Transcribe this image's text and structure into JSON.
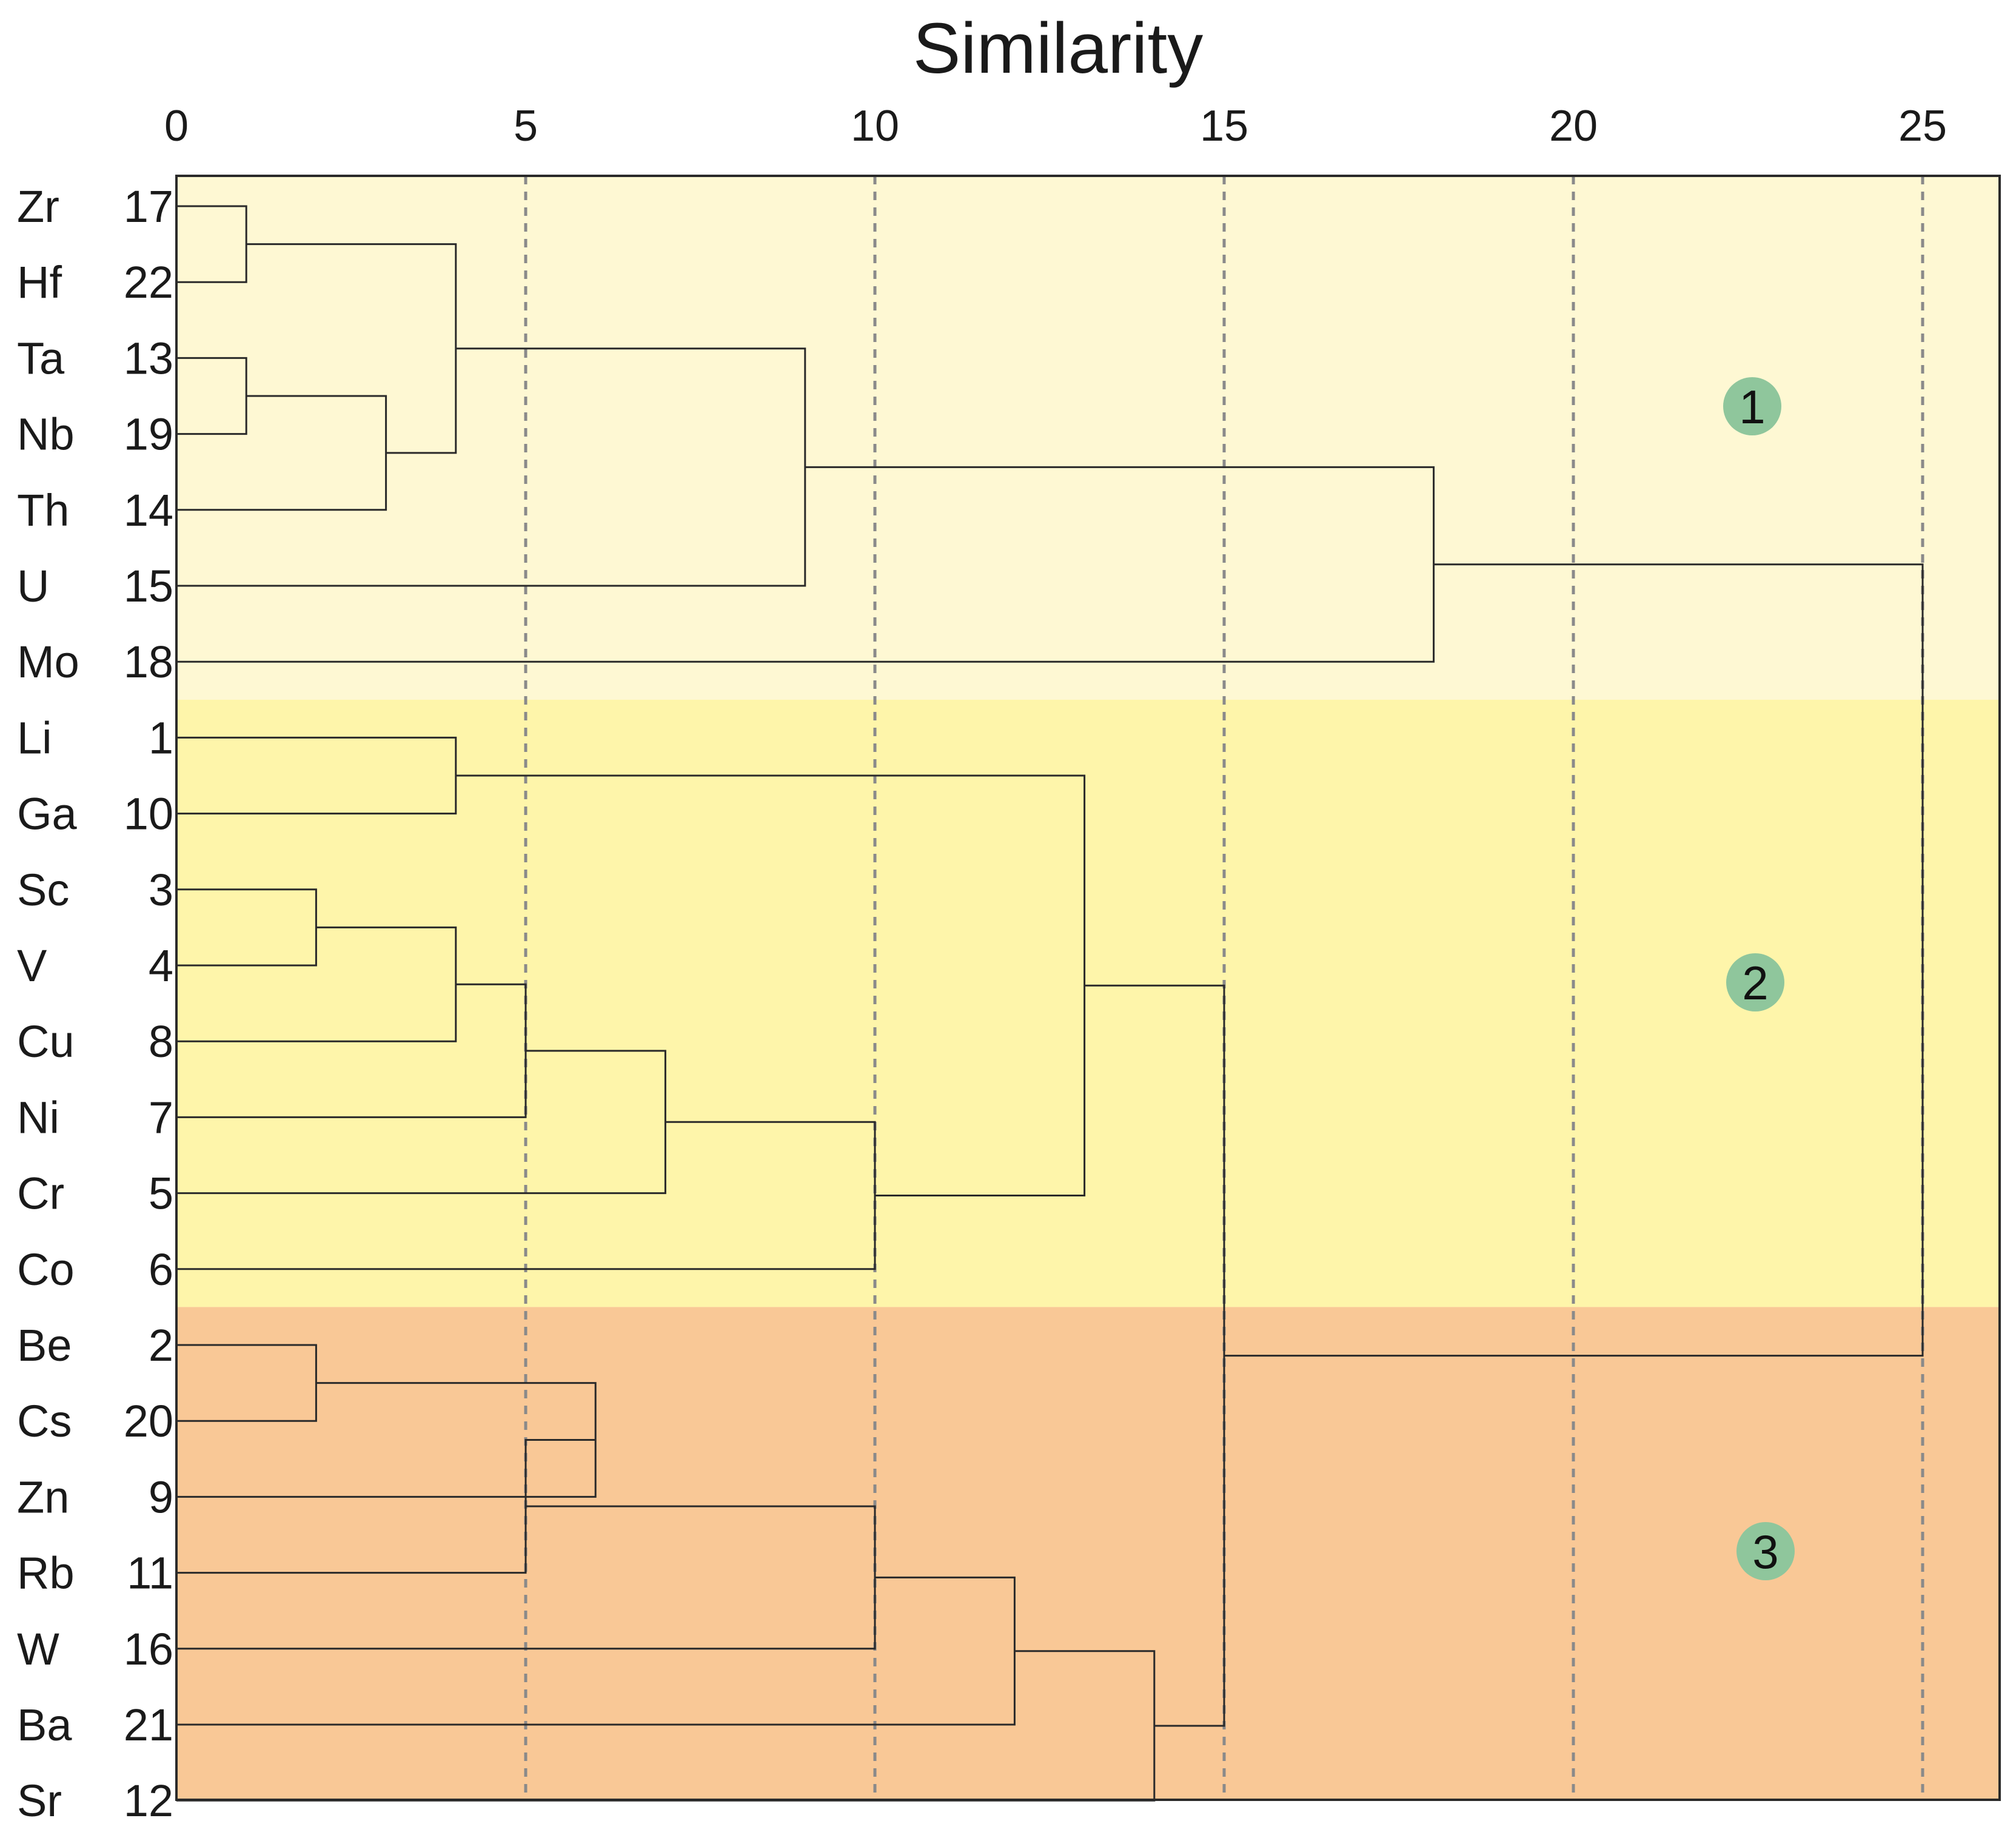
{
  "chart_data": {
    "type": "dendrogram",
    "title": "Similarity",
    "xlabel": "",
    "ylabel": "",
    "xlim": [
      0,
      26
    ],
    "x_ticks": [
      "0",
      "5",
      "10",
      "15",
      "20",
      "25"
    ],
    "grid": "vertical dashed lines at 5, 10, 15, 20, 25",
    "leaves": [
      {
        "element": "Zr",
        "id": "17"
      },
      {
        "element": "Hf",
        "id": "22"
      },
      {
        "element": "Ta",
        "id": "13"
      },
      {
        "element": "Nb",
        "id": "19"
      },
      {
        "element": "Th",
        "id": "14"
      },
      {
        "element": "U",
        "id": "15"
      },
      {
        "element": "Mo",
        "id": "18"
      },
      {
        "element": "Li",
        "id": "1"
      },
      {
        "element": "Ga",
        "id": "10"
      },
      {
        "element": "Sc",
        "id": "3"
      },
      {
        "element": "V",
        "id": "4"
      },
      {
        "element": "Cu",
        "id": "8"
      },
      {
        "element": "Ni",
        "id": "7"
      },
      {
        "element": "Cr",
        "id": "5"
      },
      {
        "element": "Co",
        "id": "6"
      },
      {
        "element": "Be",
        "id": "2"
      },
      {
        "element": "Cs",
        "id": "20"
      },
      {
        "element": "Zn",
        "id": "9"
      },
      {
        "element": "Rb",
        "id": "11"
      },
      {
        "element": "W",
        "id": "16"
      },
      {
        "element": "Ba",
        "id": "21"
      },
      {
        "element": "Sr",
        "id": "12"
      }
    ],
    "merges": [
      {
        "a": "L0",
        "b": "L1",
        "height": 1
      },
      {
        "a": "L2",
        "b": "L3",
        "height": 1
      },
      {
        "a": "M1",
        "b": "L4",
        "height": 3
      },
      {
        "a": "M0",
        "b": "M2",
        "height": 4
      },
      {
        "a": "M3",
        "b": "L5",
        "height": 9
      },
      {
        "a": "M4",
        "b": "L6",
        "height": 18
      },
      {
        "a": "L7",
        "b": "L8",
        "height": 4
      },
      {
        "a": "L9",
        "b": "L10",
        "height": 2
      },
      {
        "a": "M7",
        "b": "L11",
        "height": 4
      },
      {
        "a": "M8",
        "b": "L12",
        "height": 5
      },
      {
        "a": "M9",
        "b": "L13",
        "height": 7
      },
      {
        "a": "M10",
        "b": "L14",
        "height": 10
      },
      {
        "a": "M6",
        "b": "M11",
        "height": 13
      },
      {
        "a": "L15",
        "b": "L16",
        "height": 2
      },
      {
        "a": "M13",
        "b": "L17",
        "height": 6
      },
      {
        "a": "M14",
        "b": "L18",
        "height": 5
      },
      {
        "a": "M15",
        "b": "L19",
        "height": 10
      },
      {
        "a": "M16",
        "b": "L20",
        "height": 12
      },
      {
        "a": "M17",
        "b": "L21",
        "height": 14
      },
      {
        "a": "M12",
        "b": "M18",
        "height": 15
      },
      {
        "a": "M5",
        "b": "M19",
        "height": 25
      }
    ],
    "groups": [
      {
        "label": "1",
        "leaf_range": [
          0,
          6
        ],
        "color": "#fef8d3"
      },
      {
        "label": "2",
        "leaf_range": [
          7,
          14
        ],
        "color": "#fef5aa"
      },
      {
        "label": "3",
        "leaf_range": [
          15,
          21
        ],
        "color": "#f9c896"
      }
    ],
    "badge_color": "#8fc69c"
  }
}
